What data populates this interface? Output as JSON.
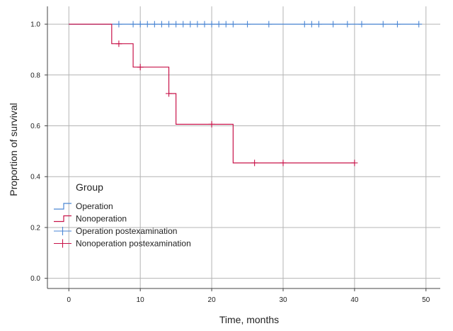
{
  "chart_data": {
    "type": "line",
    "subtype": "kaplan-meier step survival curve",
    "xlabel": "Time, months",
    "ylabel": "Proportion of survival",
    "xlim": [
      -3,
      52
    ],
    "ylim": [
      -0.04,
      1.07
    ],
    "x_ticks": [
      0,
      10,
      20,
      30,
      40,
      50
    ],
    "x_tick_labels": [
      "0",
      "10",
      "20",
      "30",
      "40",
      "50"
    ],
    "y_ticks": [
      0.0,
      0.2,
      0.4,
      0.6,
      0.8,
      1.0
    ],
    "y_tick_labels": [
      "0.0",
      "0.2",
      "0.4",
      "0.6",
      "0.8",
      "1.0"
    ],
    "grid": true,
    "legend": {
      "title": "Group",
      "placement": "lower-left",
      "entries": [
        {
          "label": "Operation",
          "kind": "step",
          "color": "#4a86d4"
        },
        {
          "label": "Nonoperation",
          "kind": "step",
          "color": "#c8144a"
        },
        {
          "label": "Operation postexamination",
          "kind": "censor",
          "color": "#4a86d4"
        },
        {
          "label": "Nonoperation postexamination",
          "kind": "censor",
          "color": "#c8144a"
        }
      ]
    },
    "series": [
      {
        "name": "Operation",
        "color": "#4a86d4",
        "steps": [
          [
            0,
            1.0
          ],
          [
            49,
            1.0
          ]
        ],
        "censored": [
          7,
          9,
          10,
          11,
          12,
          13,
          14,
          15,
          16,
          17,
          18,
          19,
          20,
          21,
          22,
          23,
          25,
          28,
          33,
          34,
          35,
          37,
          39,
          41,
          44,
          46,
          49
        ]
      },
      {
        "name": "Nonoperation",
        "color": "#c8144a",
        "steps": [
          [
            0,
            1.0
          ],
          [
            6,
            0.923
          ],
          [
            9,
            0.831
          ],
          [
            14,
            0.727
          ],
          [
            15,
            0.606
          ],
          [
            23,
            0.454
          ],
          [
            40,
            0.454
          ]
        ],
        "censored": [
          7,
          10,
          14,
          20,
          26,
          30,
          40
        ]
      }
    ]
  }
}
